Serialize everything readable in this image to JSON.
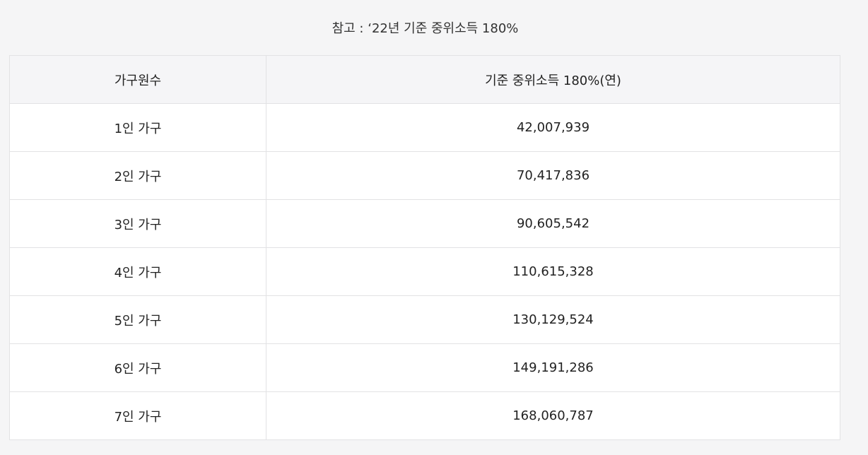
{
  "caption": "참고 : ‘22년 기준 중위소득 180%",
  "table": {
    "headers": [
      "가구원수",
      "기준 중위소득 180%(연)"
    ],
    "rows": [
      [
        "1인 가구",
        "42,007,939"
      ],
      [
        "2인 가구",
        "70,417,836"
      ],
      [
        "3인 가구",
        "90,605,542"
      ],
      [
        "4인 가구",
        "110,615,328"
      ],
      [
        "5인 가구",
        "130,129,524"
      ],
      [
        "6인 가구",
        "149,191,286"
      ],
      [
        "7인 가구",
        "168,060,787"
      ]
    ]
  },
  "colors": {
    "page_background": "#f5f5f6",
    "header_background": "#f5f5f7",
    "border": "#e2e2e4",
    "text": "#222222"
  }
}
